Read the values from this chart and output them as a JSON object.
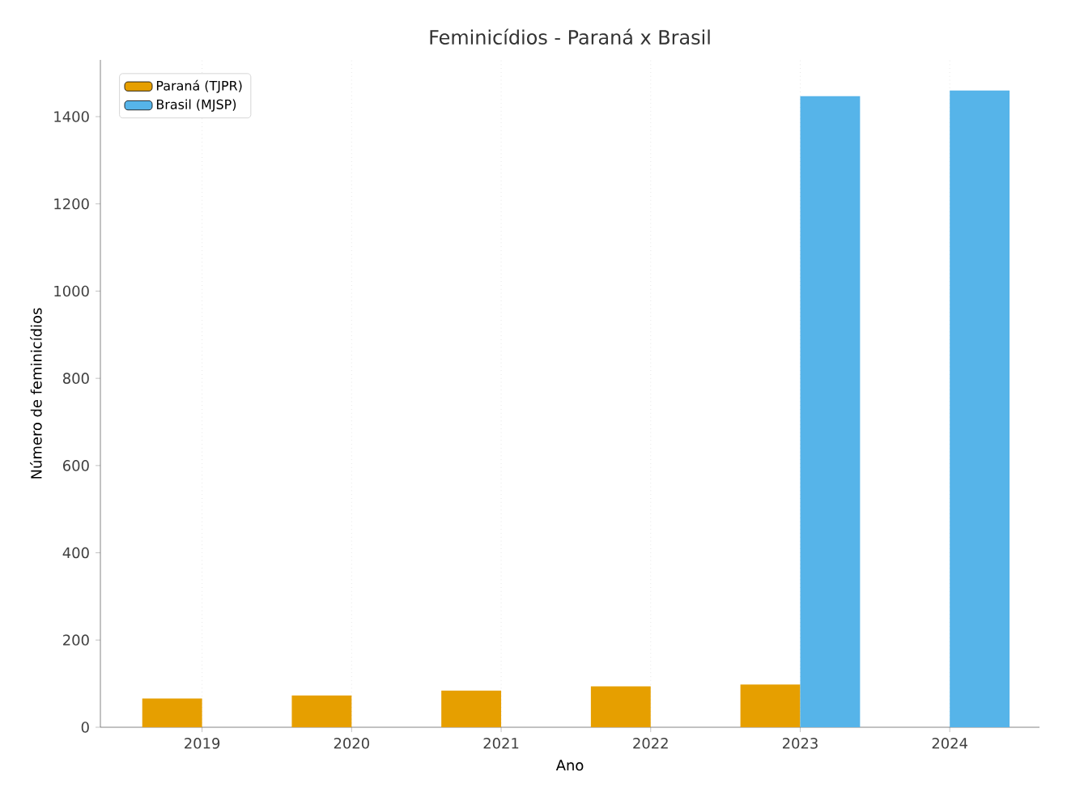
{
  "chart_data": {
    "type": "bar",
    "title": "Feminicídios - Paraná x Brasil",
    "xlabel": "Ano",
    "ylabel": "Número de feminicídios",
    "categories": [
      "2019",
      "2020",
      "2021",
      "2022",
      "2023",
      "2024"
    ],
    "series": [
      {
        "name": "Paraná (TJPR)",
        "color": "#e69f00",
        "values": [
          66,
          73,
          84,
          94,
          98,
          null
        ]
      },
      {
        "name": "Brasil (MJSP)",
        "color": "#56b4e9",
        "values": [
          null,
          null,
          null,
          null,
          1447,
          1460
        ]
      }
    ],
    "ylim": [
      0,
      1530
    ],
    "yticks": [
      0,
      200,
      400,
      600,
      800,
      1000,
      1200,
      1400
    ],
    "grid": "x",
    "legend": "top left"
  }
}
